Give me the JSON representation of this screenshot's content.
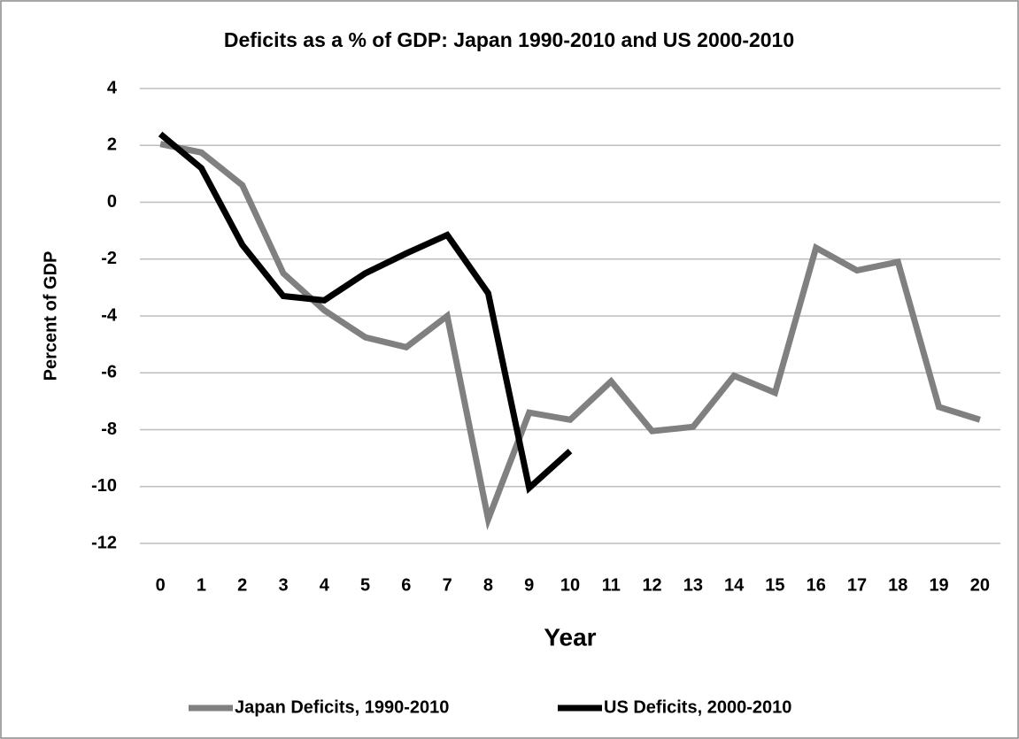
{
  "chart_data": {
    "type": "line",
    "title": "Deficits as a % of GDP:  Japan 1990-2010 and US 2000-2010",
    "x_label": "Year",
    "y_label": "Percent of GDP",
    "x": [
      0,
      1,
      2,
      3,
      4,
      5,
      6,
      7,
      8,
      9,
      10,
      11,
      12,
      13,
      14,
      15,
      16,
      17,
      18,
      19,
      20
    ],
    "xlim": [
      -0.5,
      20.5
    ],
    "xticks": [
      0,
      1,
      2,
      3,
      4,
      5,
      6,
      7,
      8,
      9,
      10,
      11,
      12,
      13,
      14,
      15,
      16,
      17,
      18,
      19,
      20
    ],
    "ylim": [
      -12,
      4
    ],
    "yticks": [
      -12,
      -10,
      -8,
      -6,
      -4,
      -2,
      0,
      2,
      4
    ],
    "grid": true,
    "legend": "bottom",
    "series": [
      {
        "name": "Japan Deficits, 1990-2010",
        "color": "#808080",
        "values": [
          2.05,
          1.75,
          0.6,
          -2.5,
          -3.8,
          -4.75,
          -5.1,
          -4.0,
          -11.15,
          -7.4,
          -7.65,
          -6.3,
          -8.05,
          -7.9,
          -6.1,
          -6.7,
          -1.6,
          -2.4,
          -2.1,
          -7.2,
          -7.65
        ]
      },
      {
        "name": "US Deficits, 2000-2010",
        "color": "#000000",
        "values": [
          2.4,
          1.2,
          -1.5,
          -3.3,
          -3.45,
          -2.5,
          -1.8,
          -1.15,
          -3.2,
          -10.05,
          -8.75,
          null,
          null,
          null,
          null,
          null,
          null,
          null,
          null,
          null,
          null
        ]
      }
    ]
  }
}
